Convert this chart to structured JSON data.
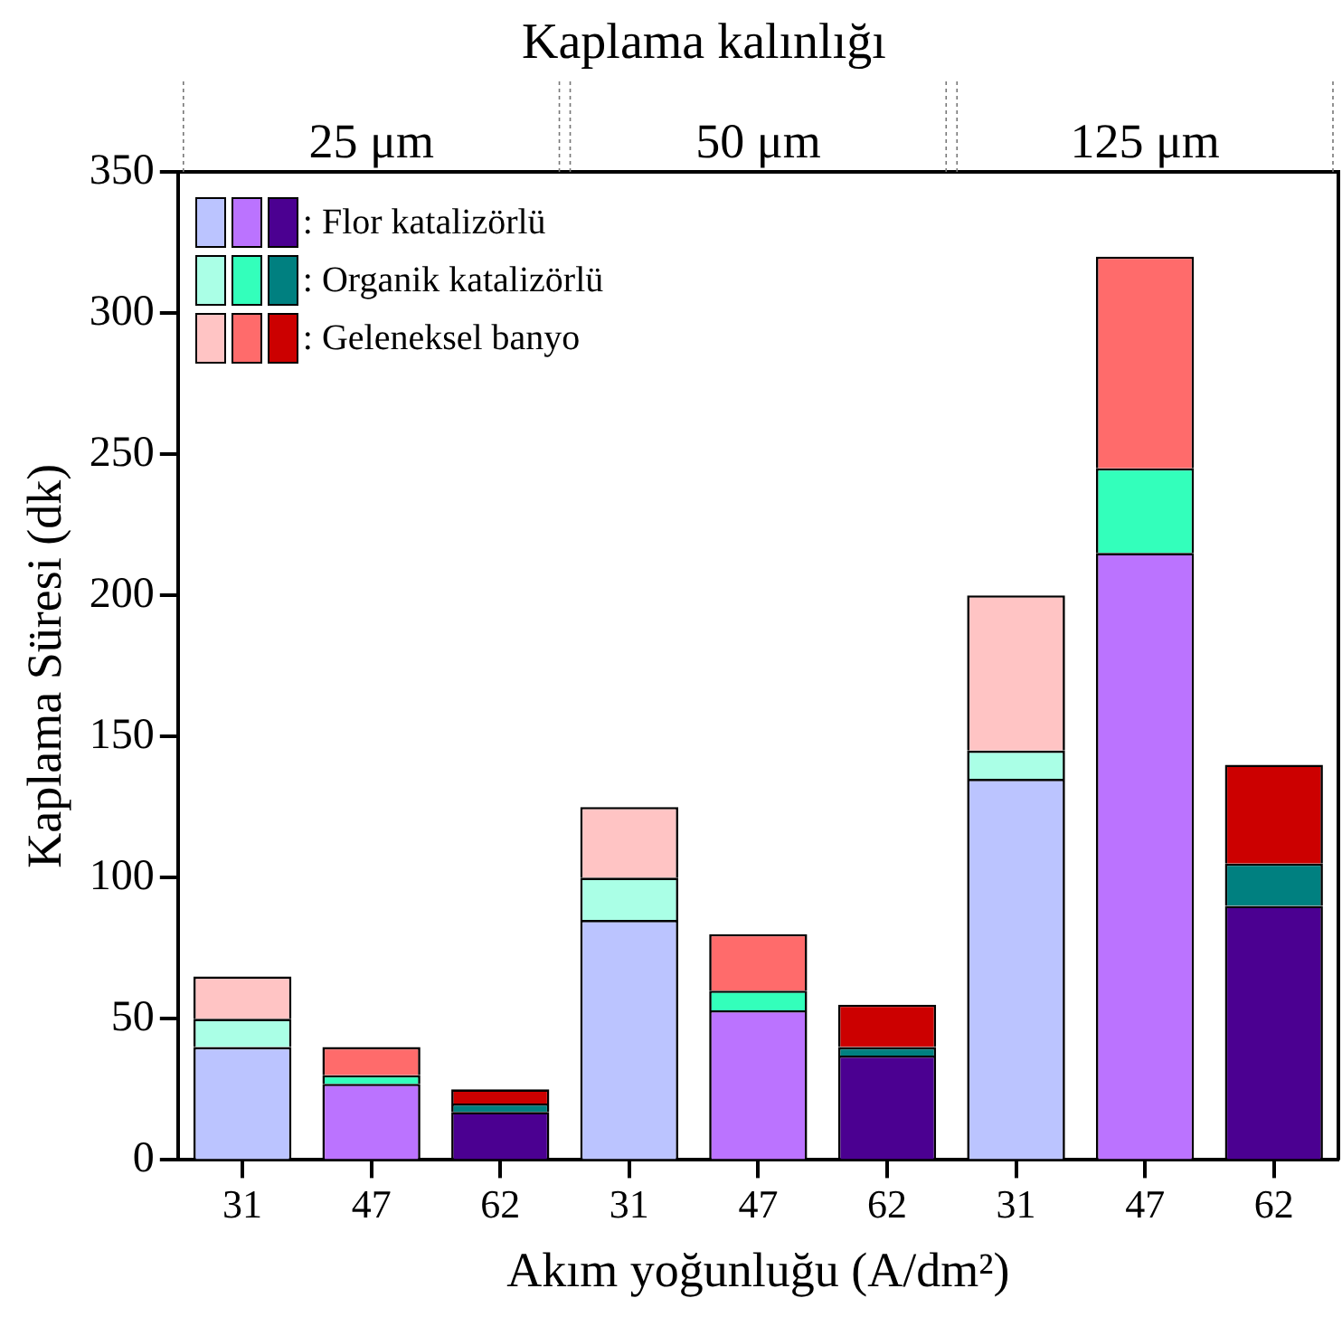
{
  "chart_data": {
    "type": "bar",
    "stacked": true,
    "title": "Kaplama kalınlığı",
    "xlabel": "Akım yoğunluğu (A/dm²)",
    "ylabel": "Kaplama Süresi (dk)",
    "categories": [
      "31",
      "47",
      "62",
      "31",
      "47",
      "62",
      "31",
      "47",
      "62"
    ],
    "annotations": [
      "25 μm",
      "50 μm",
      "125 μm"
    ],
    "series": [
      {
        "name": ": Flor katalizörlü",
        "values": [
          40,
          27,
          17,
          85,
          53,
          37,
          135,
          215,
          90
        ],
        "colors": [
          "#bbc4ff",
          "#bb73ff",
          "#4b0091",
          "#bbc4ff",
          "#bb73ff",
          "#4b0091",
          "#bbc4ff",
          "#bb73ff",
          "#4b0091"
        ]
      },
      {
        "name": ": Organik katalizörlü",
        "values": [
          10,
          3,
          3,
          15,
          7,
          3,
          10,
          30,
          15
        ],
        "colors": [
          "#aaffe6",
          "#33ffbb",
          "#008080",
          "#aaffe6",
          "#33ffbb",
          "#008080",
          "#aaffe6",
          "#33ffbb",
          "#008080"
        ]
      },
      {
        "name": ": Geleneksel banyo",
        "values": [
          15,
          10,
          5,
          25,
          20,
          15,
          55,
          75,
          35
        ],
        "colors": [
          "#ffc4c4",
          "#ff6b6b",
          "#cc0000",
          "#ffc4c4",
          "#ff6b6b",
          "#cc0000",
          "#ffc4c4",
          "#ff6b6b",
          "#cc0000"
        ]
      }
    ],
    "ylim": [
      0,
      350
    ],
    "yticks": [
      0,
      50,
      100,
      150,
      200,
      250,
      300,
      350
    ],
    "grid": false,
    "legend": "top left"
  }
}
